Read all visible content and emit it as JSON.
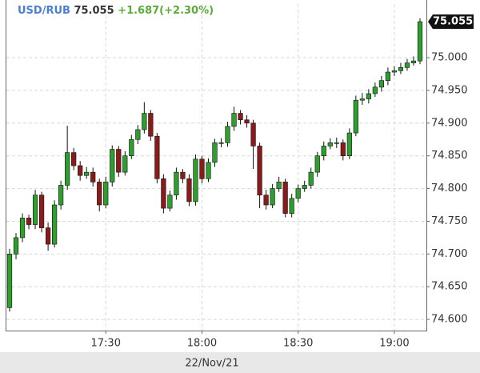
{
  "chart_data": {
    "type": "candlestick",
    "symbol": "USD/RUB",
    "last": 75.055,
    "change": "+1.687(+2.30%)",
    "date_label": "22/Nov/21",
    "up_color": "#2e9e2e",
    "down_color": "#8b1a1a",
    "grid": true,
    "x": [
      "17:00",
      "17:02",
      "17:04",
      "17:06",
      "17:08",
      "17:10",
      "17:12",
      "17:14",
      "17:16",
      "17:18",
      "17:20",
      "17:22",
      "17:24",
      "17:26",
      "17:28",
      "17:30",
      "17:32",
      "17:34",
      "17:36",
      "17:38",
      "17:40",
      "17:42",
      "17:44",
      "17:46",
      "17:48",
      "17:50",
      "17:52",
      "17:54",
      "17:56",
      "17:58",
      "18:00",
      "18:02",
      "18:04",
      "18:06",
      "18:08",
      "18:10",
      "18:12",
      "18:14",
      "18:16",
      "18:18",
      "18:20",
      "18:22",
      "18:24",
      "18:26",
      "18:28",
      "18:30",
      "18:32",
      "18:34",
      "18:36",
      "18:38",
      "18:40",
      "18:42",
      "18:44",
      "18:46",
      "18:48",
      "18:50",
      "18:52",
      "18:54",
      "18:56",
      "18:58",
      "19:00",
      "19:02",
      "19:04",
      "19:06",
      "19:08"
    ],
    "open": [
      74.618,
      74.7,
      74.725,
      74.755,
      74.745,
      74.79,
      74.74,
      74.715,
      74.775,
      74.805,
      74.855,
      74.835,
      74.82,
      74.825,
      74.81,
      74.775,
      74.81,
      74.86,
      74.825,
      74.85,
      74.875,
      74.89,
      74.915,
      74.88,
      74.815,
      74.77,
      74.79,
      74.825,
      74.815,
      74.78,
      74.845,
      74.815,
      74.84,
      74.87,
      74.87,
      74.895,
      74.915,
      74.905,
      74.9,
      74.865,
      74.79,
      74.775,
      74.8,
      74.81,
      74.762,
      74.785,
      74.8,
      74.805,
      74.825,
      74.85,
      74.865,
      74.87,
      74.87,
      74.85,
      74.885,
      74.935,
      74.937,
      74.945,
      74.955,
      74.965,
      74.978,
      74.98,
      74.985,
      74.992,
      74.995
    ],
    "high": [
      74.708,
      74.732,
      74.762,
      74.76,
      74.798,
      74.795,
      74.748,
      74.782,
      74.812,
      74.896,
      74.862,
      74.842,
      74.833,
      74.832,
      74.815,
      74.818,
      74.866,
      74.865,
      74.857,
      74.882,
      74.897,
      74.932,
      74.92,
      74.885,
      74.822,
      74.797,
      74.832,
      74.83,
      74.822,
      74.852,
      74.85,
      74.846,
      74.876,
      74.877,
      74.902,
      74.925,
      74.92,
      74.912,
      74.905,
      74.87,
      74.798,
      74.807,
      74.818,
      74.815,
      74.792,
      74.806,
      74.812,
      74.832,
      74.856,
      74.872,
      74.877,
      74.878,
      74.875,
      74.892,
      74.942,
      74.946,
      74.952,
      74.962,
      74.972,
      74.985,
      74.987,
      74.992,
      74.998,
      75.002,
      75.06
    ],
    "low": [
      74.612,
      74.692,
      74.718,
      74.738,
      74.738,
      74.733,
      74.705,
      74.71,
      74.768,
      74.798,
      74.828,
      74.812,
      74.815,
      74.803,
      74.765,
      74.77,
      74.803,
      74.818,
      74.82,
      74.845,
      74.868,
      74.884,
      74.873,
      74.808,
      74.762,
      74.765,
      74.783,
      74.808,
      74.773,
      74.774,
      74.808,
      74.81,
      74.833,
      74.863,
      74.864,
      74.888,
      74.898,
      74.893,
      74.83,
      74.77,
      74.768,
      74.77,
      74.795,
      74.756,
      74.756,
      74.779,
      74.795,
      74.8,
      74.818,
      74.843,
      74.86,
      74.862,
      74.843,
      74.845,
      74.88,
      74.928,
      74.93,
      74.94,
      74.948,
      74.958,
      74.972,
      74.975,
      74.98,
      74.988,
      74.99
    ],
    "close": [
      74.7,
      74.725,
      74.755,
      74.745,
      74.79,
      74.74,
      74.715,
      74.775,
      74.805,
      74.855,
      74.835,
      74.82,
      74.825,
      74.81,
      74.775,
      74.81,
      74.86,
      74.825,
      74.85,
      74.875,
      74.89,
      74.915,
      74.88,
      74.815,
      74.77,
      74.79,
      74.825,
      74.815,
      74.78,
      74.845,
      74.815,
      74.84,
      74.87,
      74.87,
      74.895,
      74.915,
      74.905,
      74.9,
      74.865,
      74.79,
      74.775,
      74.8,
      74.81,
      74.762,
      74.785,
      74.8,
      74.805,
      74.825,
      74.85,
      74.865,
      74.87,
      74.87,
      74.85,
      74.885,
      74.935,
      74.937,
      74.945,
      74.955,
      74.965,
      74.978,
      74.98,
      74.985,
      74.992,
      74.995,
      75.055
    ],
    "xlim": [
      "16:59",
      "19:10"
    ],
    "xticks": [
      "17:30",
      "18:00",
      "18:30",
      "19:00"
    ],
    "ylim": [
      74.583,
      75.082
    ],
    "yticks": [
      {
        "value": 74.6,
        "label": "74.600"
      },
      {
        "value": 74.65,
        "label": "74.650"
      },
      {
        "value": 74.7,
        "label": "74.700"
      },
      {
        "value": 74.75,
        "label": "74.750"
      },
      {
        "value": 74.8,
        "label": "74.800"
      },
      {
        "value": 74.85,
        "label": "74.850"
      },
      {
        "value": 74.9,
        "label": "74.900"
      },
      {
        "value": 74.95,
        "label": "74.950"
      },
      {
        "value": 75.0,
        "label": "75.000"
      }
    ]
  }
}
